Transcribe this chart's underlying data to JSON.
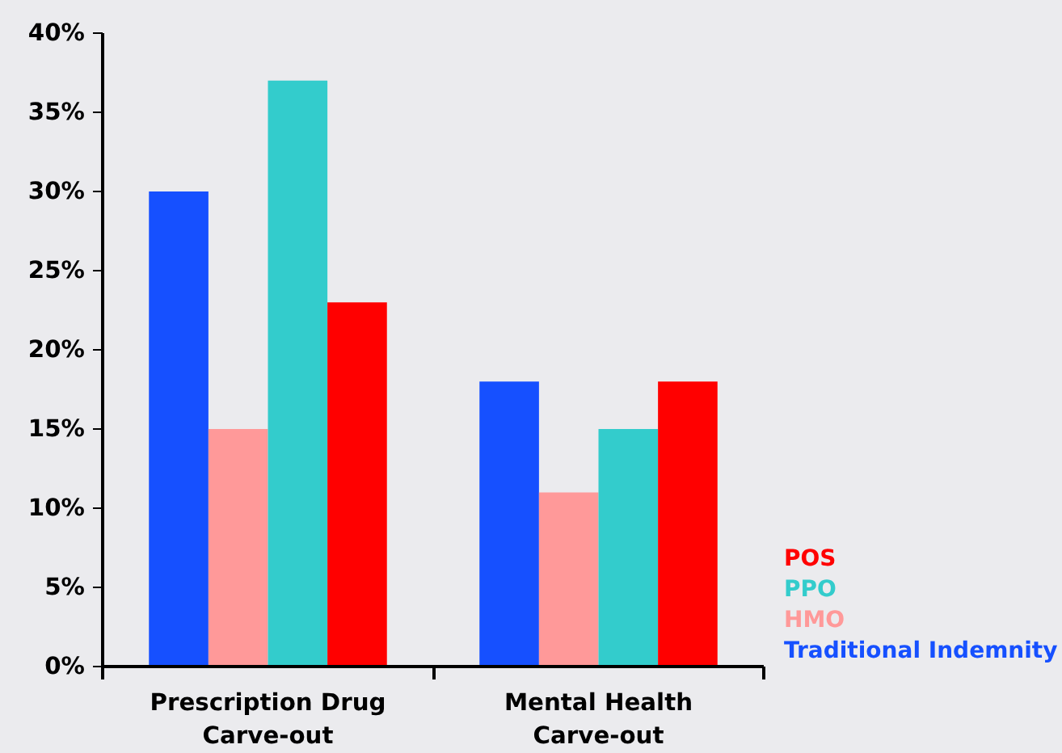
{
  "chart_data": {
    "type": "bar",
    "categories": [
      "Prescription Drug\nCarve-out",
      "Mental Health\nCarve-out"
    ],
    "series": [
      {
        "name": "Traditional Indemnity",
        "color": "#1650ff",
        "values": [
          30,
          18
        ]
      },
      {
        "name": "HMO",
        "color": "#ff9999",
        "values": [
          15,
          11
        ]
      },
      {
        "name": "PPO",
        "color": "#33cccc",
        "values": [
          37,
          15
        ]
      },
      {
        "name": "POS",
        "color": "#ff0000",
        "values": [
          23,
          18
        ]
      }
    ],
    "ylim": [
      0,
      40
    ],
    "yticks": [
      {
        "value": 0,
        "label": "0%"
      },
      {
        "value": 5,
        "label": "5%"
      },
      {
        "value": 10,
        "label": "10%"
      },
      {
        "value": 15,
        "label": "15%"
      },
      {
        "value": 20,
        "label": "20%"
      },
      {
        "value": 25,
        "label": "25%"
      },
      {
        "value": 30,
        "label": "30%"
      },
      {
        "value": 35,
        "label": "35%"
      },
      {
        "value": 40,
        "label": "40%"
      }
    ],
    "grid": false
  }
}
